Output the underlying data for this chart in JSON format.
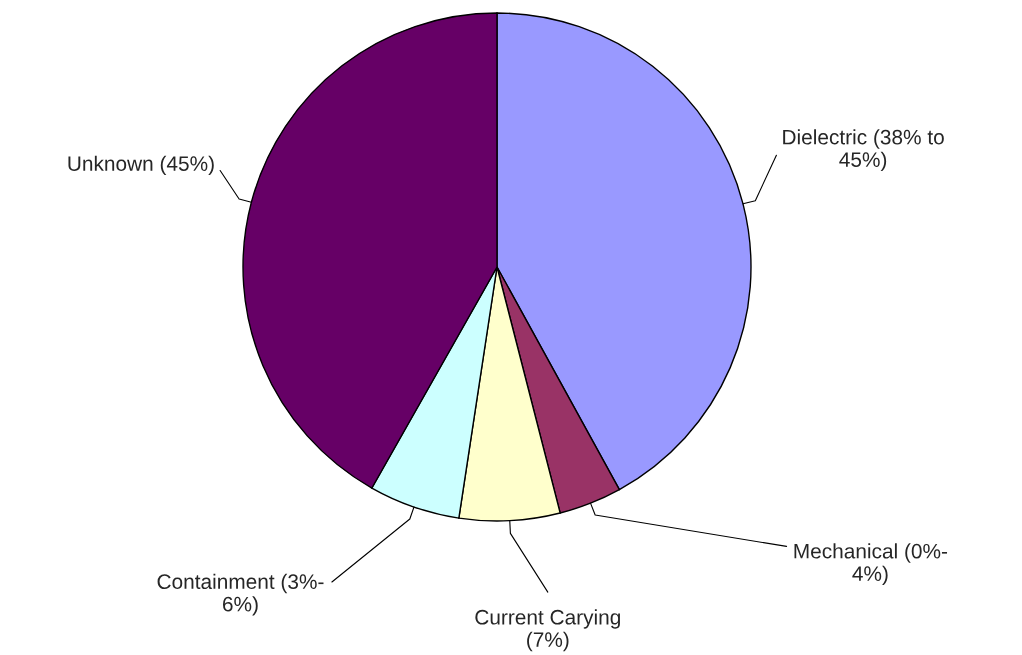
{
  "chart_data": {
    "type": "pie",
    "categories": [
      "Dielectric (38% to\n45%)",
      "Mechanical (0%-\n4%)",
      "Current Carying\n(7%)",
      "Containment (3%-\n6%)",
      "Unknown (45%)"
    ],
    "values": [
      42,
      4,
      6.4,
      5.8,
      41.8
    ],
    "colors": [
      "#9999ff",
      "#993366",
      "#ffffcc",
      "#ccffff",
      "#660066"
    ]
  }
}
